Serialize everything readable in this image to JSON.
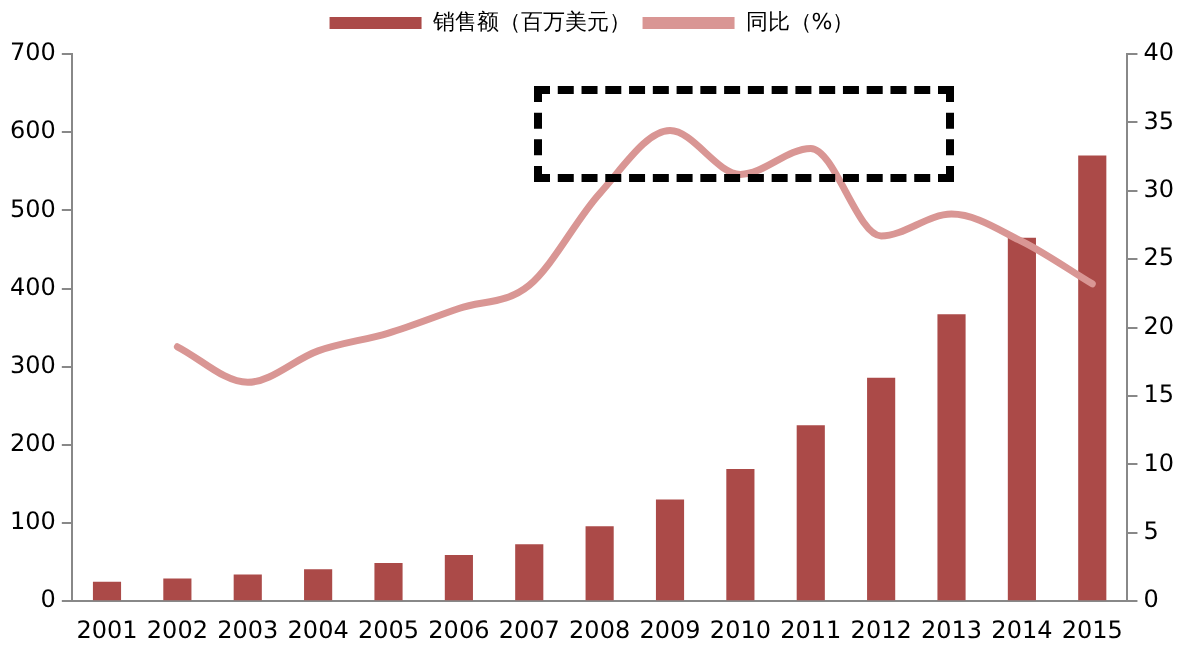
{
  "chart_data": {
    "type": "bar",
    "categories": [
      "2001",
      "2002",
      "2003",
      "2004",
      "2005",
      "2006",
      "2007",
      "2008",
      "2009",
      "2010",
      "2011",
      "2012",
      "2013",
      "2014",
      "2015"
    ],
    "series": [
      {
        "name": "销售额（百万美元）",
        "color": "#ab4a48",
        "values": [
          25,
          29,
          34,
          41,
          49,
          59,
          73,
          96,
          130,
          169,
          225,
          286,
          367,
          465,
          570
        ]
      },
      {
        "name": "同比（%）",
        "type": "line",
        "axis": "y2",
        "color": "#d99694",
        "values": [
          null,
          18.6,
          16,
          18.3,
          19.6,
          21.4,
          23.1,
          29.8,
          34.4,
          31.2,
          33.1,
          26.7,
          28.3,
          26.3,
          23.2
        ]
      }
    ],
    "ylim": [
      0,
      700
    ],
    "yticks": [
      0,
      100,
      200,
      300,
      400,
      500,
      600,
      700
    ],
    "y2lim": [
      0,
      40
    ],
    "y2ticks": [
      0,
      5,
      10,
      15,
      20,
      25,
      30,
      35,
      40
    ],
    "grid": false,
    "legend": "top",
    "marker": "none",
    "line_style": "solid"
  }
}
